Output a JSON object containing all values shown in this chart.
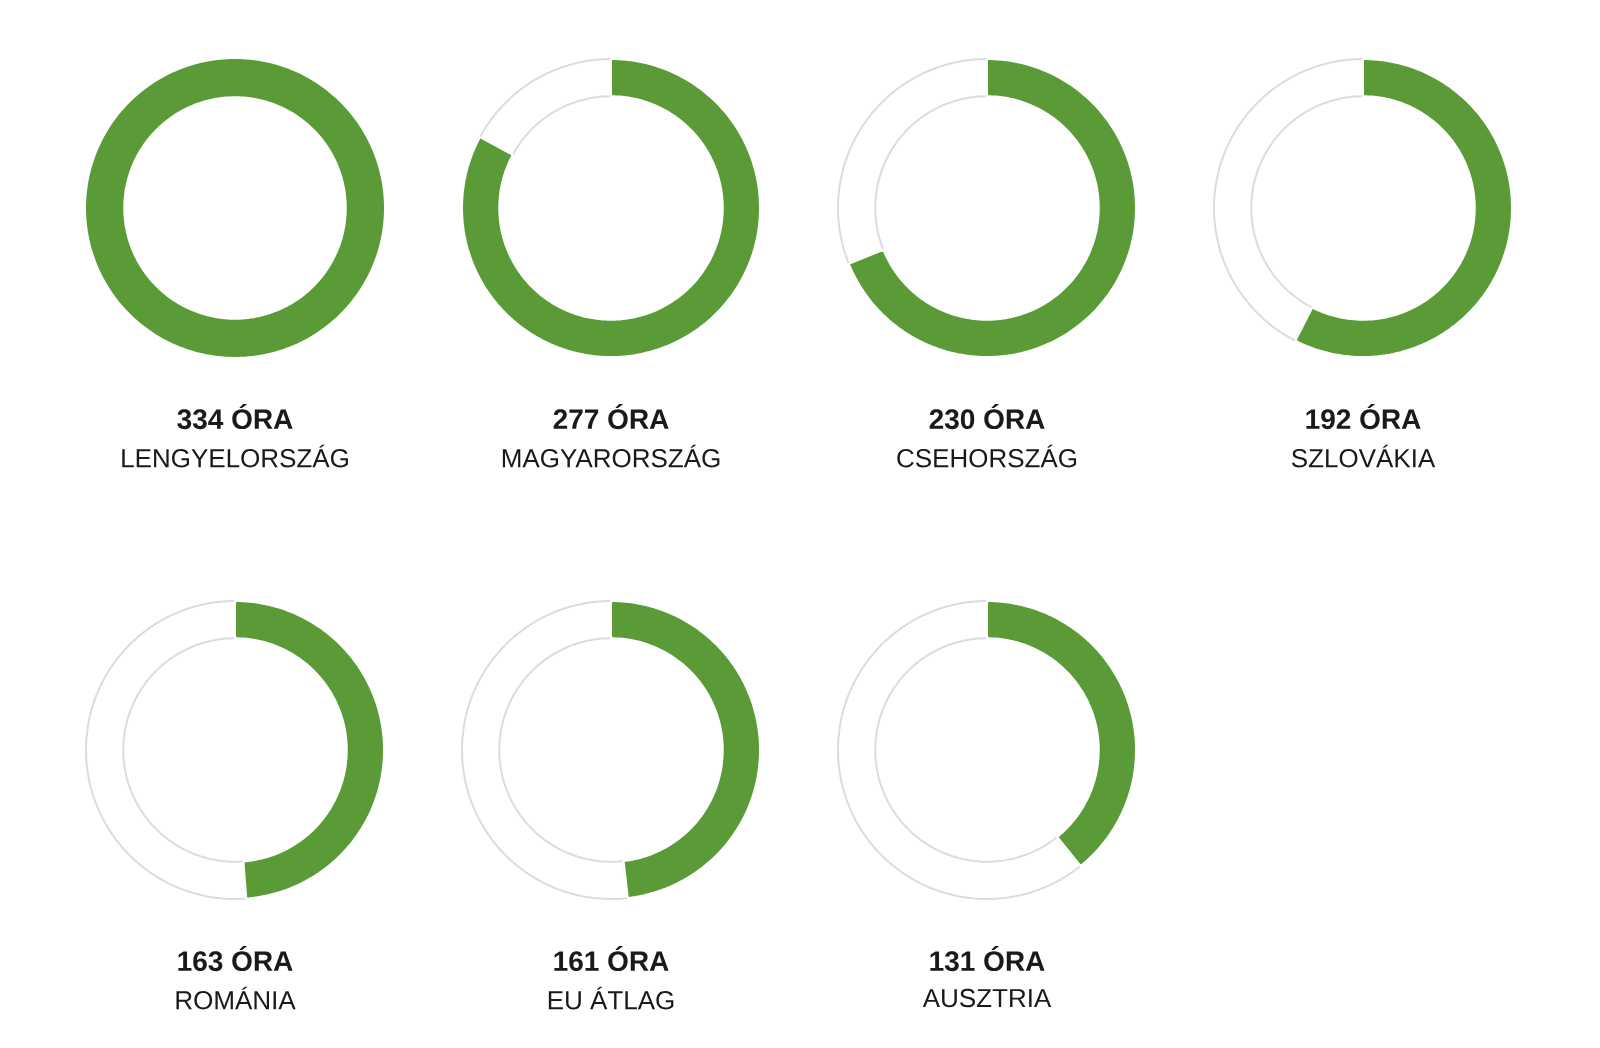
{
  "chart_data": [
    {
      "type": "donut",
      "title": "334 ÓRA",
      "subtitle": "LENGYELORSZÁG",
      "categories": [
        null,
        null
      ],
      "values": [
        100,
        0
      ],
      "colors": [
        "#5b9b37",
        "#ffffff"
      ]
    },
    {
      "type": "donut",
      "title": "277 ÓRA",
      "subtitle": "MAGYARORSZÁG",
      "categories": [
        null,
        null
      ],
      "values": [
        82.9,
        17.1
      ],
      "colors": [
        "#5b9b37",
        "#ffffff"
      ]
    },
    {
      "type": "donut",
      "title": "230 ÓRA",
      "subtitle": "CSEHORSZÁG",
      "categories": [
        null,
        null
      ],
      "values": [
        68.9,
        31.1
      ],
      "colors": [
        "#5b9b37",
        "#ffffff"
      ]
    },
    {
      "type": "donut",
      "title": "192 ÓRA",
      "subtitle": "SZLOVÁKIA",
      "categories": [
        null,
        null
      ],
      "values": [
        57.5,
        42.5
      ],
      "colors": [
        "#5b9b37",
        "#ffffff"
      ]
    },
    {
      "type": "donut",
      "title": "163 ÓRA",
      "subtitle": "ROMÁNIA",
      "categories": [
        null,
        null
      ],
      "values": [
        48.8,
        51.2
      ],
      "colors": [
        "#5b9b37",
        "#ffffff"
      ]
    },
    {
      "type": "donut",
      "title": "161 ÓRA",
      "subtitle": "EU ÁTLAG",
      "categories": [
        null,
        null
      ],
      "values": [
        48.2,
        51.8
      ],
      "colors": [
        "#5b9b37",
        "#ffffff"
      ]
    },
    {
      "type": "donut",
      "title": "131 ÓRA",
      "subtitle": "AUSZTRIA",
      "categories": [
        null,
        null
      ],
      "values": [
        39.2,
        60.8
      ],
      "colors": [
        "#5b9b37",
        "#ffffff"
      ]
    }
  ]
}
